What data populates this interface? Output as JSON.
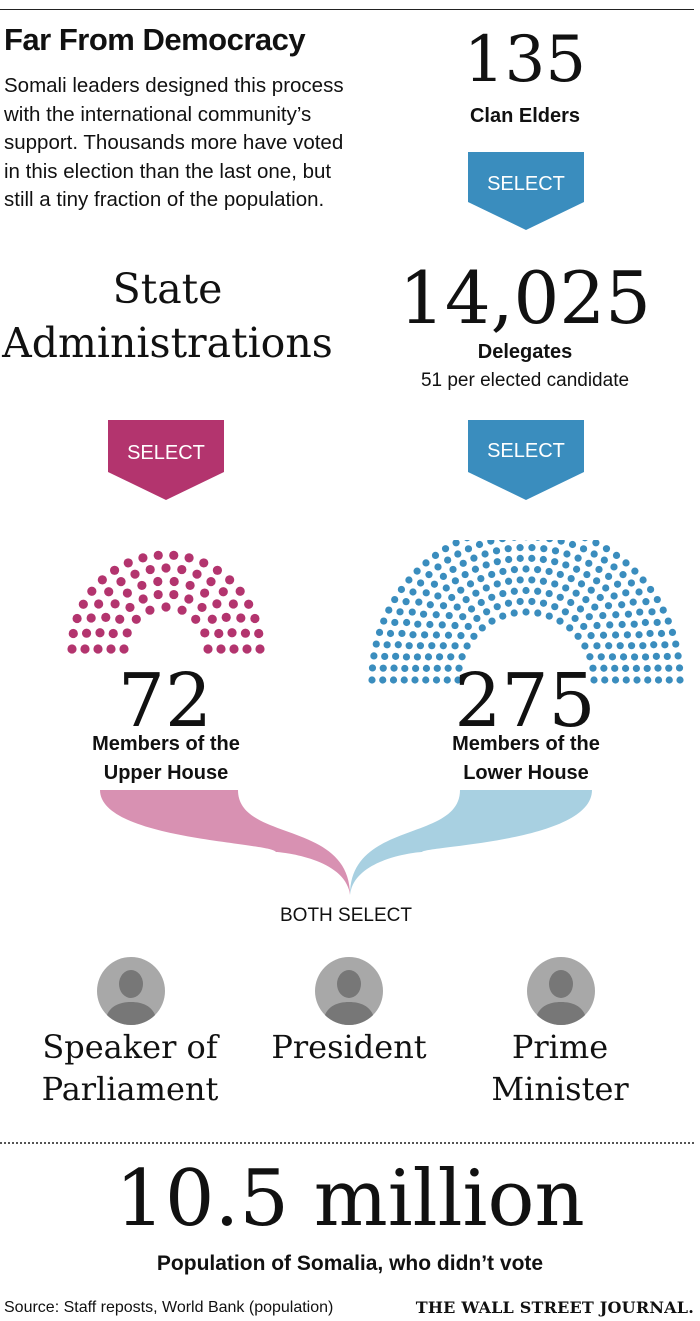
{
  "header": {
    "title": "Far From Democracy",
    "intro": "Somali leaders designed this process with the international community’s support. Thousands more have voted in this election than the last one, but still a tiny fraction of the population."
  },
  "clan_elders": {
    "count": "135",
    "label": "Clan Elders"
  },
  "select_label": "SELECT",
  "delegates": {
    "count": "14,025",
    "label": "Delegates",
    "note": "51 per elected candidate"
  },
  "state_admin": {
    "line1": "State",
    "line2": "Administrations"
  },
  "upper_house": {
    "count": "72",
    "label_line1": "Members of the",
    "label_line2": "Upper House",
    "seats": 72
  },
  "lower_house": {
    "count": "275",
    "label_line1": "Members of the",
    "label_line2": "Lower House",
    "seats": 275
  },
  "both_select": "BOTH SELECT",
  "officials": [
    {
      "line1": "Speaker of",
      "line2": "Parliament"
    },
    {
      "line1": "President",
      "line2": ""
    },
    {
      "line1": "Prime",
      "line2": "Minister"
    }
  ],
  "population": {
    "value": "10.5 million",
    "label": "Population of Somalia, who didn’t vote"
  },
  "source": "Source: Staff reposts, World Bank (population)",
  "publisher": "THE WALL STREET JOURNAL.",
  "colors": {
    "magenta": "#B3346E",
    "blue": "#3A8DBE",
    "pink_flow": "#D891B2",
    "blue_flow": "#A8D0E1",
    "avatar_bg": "#A8A8A8",
    "avatar_fg": "#777777"
  }
}
